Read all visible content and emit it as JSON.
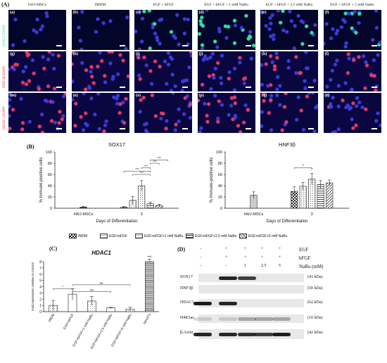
{
  "panel_a": {
    "letter": "(A)",
    "column_headers": [
      "hWJ-MSCs",
      "IMDM",
      "EGF + bFGF",
      "EGF + bFGF + 1 mM NaBu",
      "EGF + bFGF + 2.5 mM NaBu",
      "EGF + bFGF + 5 mM NaBu"
    ],
    "row_labels": [
      "SOX17/DAPI",
      "HNF3β/DAPI",
      "HDAC1/DAPI"
    ],
    "tiles": [
      [
        "(a)",
        "(b)",
        "(c)",
        "(d)",
        "(e)",
        "(f)"
      ],
      [
        "(g)",
        "(h)",
        "(i)",
        "(j)",
        "(k)",
        "(l)"
      ],
      [
        "(m)",
        "(n)",
        "(o)",
        "(p)",
        "(q)",
        "(r)"
      ]
    ],
    "row_colors": [
      "#2ed88a",
      "#e8304a",
      "#e8304a"
    ]
  },
  "panel_b": {
    "letter": "(B)",
    "legend": [
      "IMDM",
      "EGF+bFGF",
      "EGF+bFGF+1 mM NaBu",
      "EGF+bFGF+2.5 mM NaBu",
      "EGF+bFGF+5 mM NaBu"
    ]
  },
  "panel_c": {
    "letter": "(C)"
  },
  "panel_d": {
    "letter": "(D)",
    "treatments": [
      {
        "label": "EGF",
        "marks": [
          "-",
          "+",
          "+",
          "+",
          "+"
        ]
      },
      {
        "label": "bFGF",
        "marks": [
          "-",
          "+",
          "+",
          "+",
          "+"
        ]
      },
      {
        "label": "NaBu (mM)",
        "marks": [
          "-",
          "-",
          "1",
          "2.5",
          "5"
        ]
      }
    ],
    "blots": [
      {
        "protein": "SOX17",
        "kda": "(43 kDa)",
        "bands": [
          0,
          0.9,
          0.8,
          0,
          0
        ]
      },
      {
        "protein": "HNF3β",
        "kda": "(50 kDa)",
        "bands": [
          0,
          0,
          0,
          0,
          0
        ]
      },
      {
        "protein": "HDAC1",
        "kda": "(62 kDa)",
        "bands": [
          0.95,
          0.9,
          0,
          0,
          0
        ]
      },
      {
        "protein": "H4K5ac",
        "kda": "(10 kDa)",
        "bands": [
          0.15,
          0.15,
          0.3,
          0.3,
          0.3
        ]
      },
      {
        "protein": "β-Actin",
        "kda": "(42 kDa)",
        "bands": [
          0.9,
          0.9,
          0.85,
          0.8,
          0.95
        ]
      }
    ]
  },
  "chart_data": [
    {
      "type": "bar",
      "title": "SOX17",
      "xlabel": "Days of Differentiation",
      "ylabel": "% Immuno-positive cells",
      "ylim": [
        0,
        100
      ],
      "yticks": [
        0,
        20,
        40,
        60,
        80,
        100
      ],
      "groups": [
        "hWJ-MSCs",
        "3"
      ],
      "series": [
        {
          "name": "hWJ-MSCs",
          "values": [
            2,
            null
          ],
          "errors": [
            1,
            null
          ],
          "fill": "#444444"
        },
        {
          "name": "IMDM",
          "values": [
            null,
            2
          ],
          "errors": [
            null,
            1
          ],
          "fill": "checker"
        },
        {
          "name": "EGF+bFGF",
          "values": [
            null,
            14
          ],
          "errors": [
            null,
            7
          ],
          "fill": "grid"
        },
        {
          "name": "EGF+bFGF+1 mM NaBu",
          "values": [
            null,
            40
          ],
          "errors": [
            null,
            9
          ],
          "fill": "dots"
        },
        {
          "name": "EGF+bFGF+2.5 mM NaBu",
          "values": [
            null,
            8
          ],
          "errors": [
            null,
            3
          ],
          "fill": "hatch"
        },
        {
          "name": "EGF+bFGF+5 mM NaBu",
          "values": [
            null,
            5
          ],
          "errors": [
            null,
            2
          ],
          "fill": "diag"
        }
      ],
      "significance": [
        "***",
        "***",
        "***",
        "***",
        "***"
      ]
    },
    {
      "type": "bar",
      "title": "HNF3β",
      "xlabel": "Days of Differentiation",
      "ylabel": "% Immuno-positive cells",
      "ylim": [
        0,
        100
      ],
      "yticks": [
        0,
        20,
        40,
        60,
        80,
        100
      ],
      "groups": [
        "hWJ-MSCs",
        "3"
      ],
      "series": [
        {
          "name": "hWJ-MSCs",
          "values": [
            23,
            null
          ],
          "errors": [
            6,
            null
          ],
          "fill": "#cccccc"
        },
        {
          "name": "IMDM",
          "values": [
            null,
            30
          ],
          "errors": [
            null,
            8
          ],
          "fill": "checker"
        },
        {
          "name": "EGF+bFGF",
          "values": [
            null,
            39
          ],
          "errors": [
            null,
            7
          ],
          "fill": "grid"
        },
        {
          "name": "EGF+bFGF+1 mM NaBu",
          "values": [
            null,
            52
          ],
          "errors": [
            null,
            10
          ],
          "fill": "dots"
        },
        {
          "name": "EGF+bFGF+2.5 mM NaBu",
          "values": [
            null,
            42
          ],
          "errors": [
            null,
            7
          ],
          "fill": "hatch"
        },
        {
          "name": "EGF+bFGF+5 mM NaBu",
          "values": [
            null,
            45
          ],
          "errors": [
            null,
            5
          ],
          "fill": "diag"
        }
      ],
      "significance": [
        "*",
        "*"
      ]
    },
    {
      "type": "bar",
      "title": "HDAC1",
      "ylabel": "Fold expression relative to control",
      "ylim": [
        0,
        8
      ],
      "yticks": [
        0,
        1,
        2,
        3,
        4,
        5,
        6,
        7,
        8
      ],
      "categories": [
        "IMDM",
        "EGF+bFGF",
        "EGF+bFGF+1 mM NaBu",
        "EGF+bFGF+2.5 mM NaBu",
        "EGF+bFGF+5 mM NaBu",
        "NIH3T3"
      ],
      "values": [
        1.0,
        2.8,
        1.7,
        0.6,
        0.4,
        8.3
      ],
      "errors": [
        0.8,
        0.9,
        0.7,
        0.1,
        0.3,
        0.2
      ],
      "significance": [
        "*",
        "ns",
        "ns",
        "***"
      ]
    }
  ]
}
